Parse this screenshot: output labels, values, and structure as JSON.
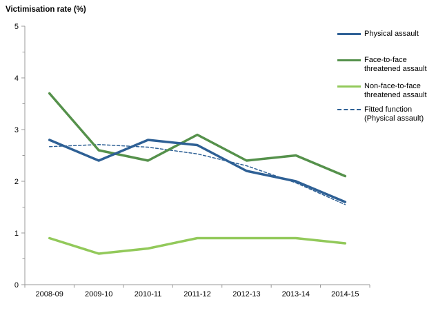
{
  "chart_data": {
    "type": "line",
    "title": "Victimisation rate (%)",
    "categories": [
      "2008-09",
      "2009-10",
      "2010-11",
      "2011-12",
      "2012-13",
      "2013-14",
      "2014-15"
    ],
    "series": [
      {
        "name": "Physical assault",
        "values": [
          2.8,
          2.4,
          2.8,
          2.7,
          2.2,
          2.0,
          1.6
        ],
        "color": "#2E6095",
        "style": "solid",
        "line_width": 3.5
      },
      {
        "name": "Face-to-face threatened assault",
        "values": [
          3.7,
          2.6,
          2.4,
          2.9,
          2.4,
          2.5,
          2.1
        ],
        "color": "#55914B",
        "style": "solid",
        "line_width": 3.5
      },
      {
        "name": "Non-face-to-face threatened assault",
        "values": [
          0.9,
          0.6,
          0.7,
          0.9,
          0.9,
          0.9,
          0.8
        ],
        "color": "#92C95A",
        "style": "solid",
        "line_width": 3.5
      },
      {
        "name": "Fitted function (Physical assault)",
        "values": [
          2.67,
          2.71,
          2.66,
          2.53,
          2.3,
          1.97,
          1.55
        ],
        "color": "#2E6095",
        "style": "dashed",
        "line_width": 1.5
      }
    ],
    "xlabel": "",
    "ylabel": "Victimisation rate (%)",
    "ylim": [
      0,
      5
    ],
    "y_major_step": 1,
    "y_minor_step": 0.5,
    "axis_color": "#999999",
    "grid": false,
    "legend_position": "top-right"
  }
}
